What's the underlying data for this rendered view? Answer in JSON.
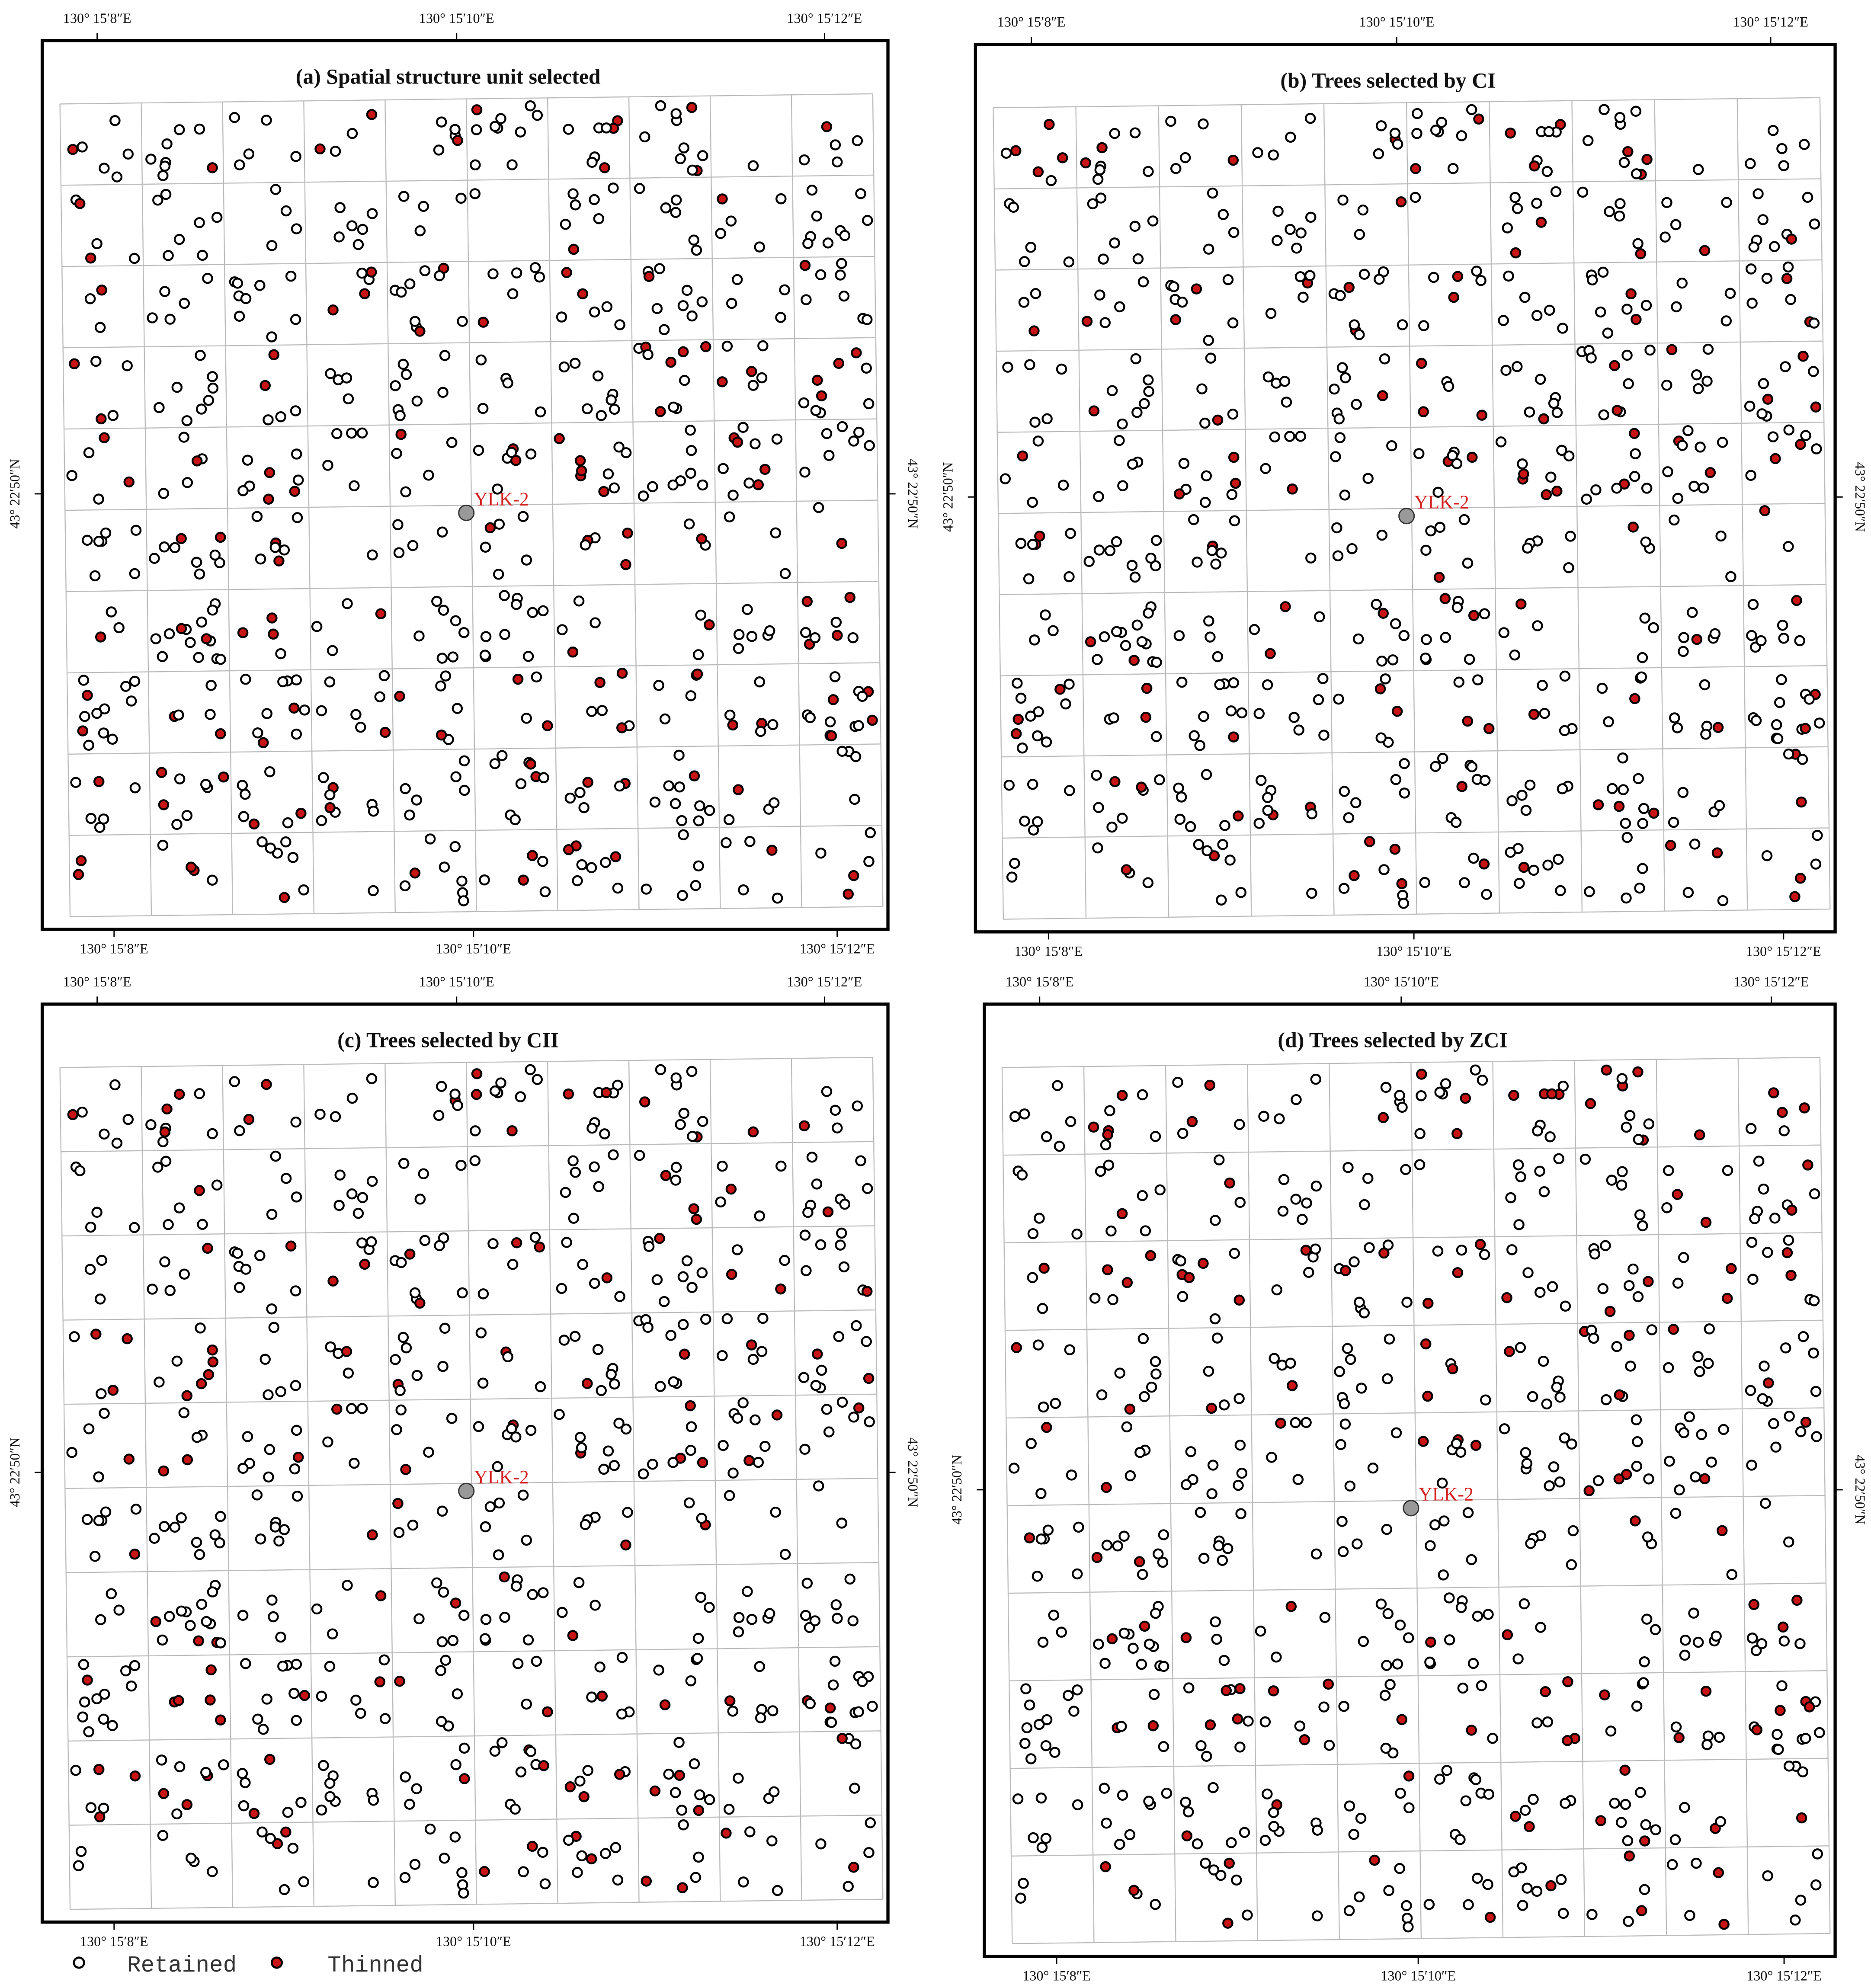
{
  "axis_labels": {
    "longitude": [
      "130° 15′8″E",
      "130° 15′10″E",
      "130° 15′12″E"
    ],
    "latitude": "43° 22′50″N"
  },
  "plot_label": "YLK-2",
  "panels": [
    {
      "title": "(a)   Spatial structure unit selected"
    },
    {
      "title": "(b)   Trees selected by CI"
    },
    {
      "title": "(c)   Trees selected by CII"
    },
    {
      "title": "(d)   Trees selected by ZCI"
    }
  ],
  "legend": [
    {
      "label": "Retained"
    },
    {
      "label": "Thinned"
    }
  ]
}
